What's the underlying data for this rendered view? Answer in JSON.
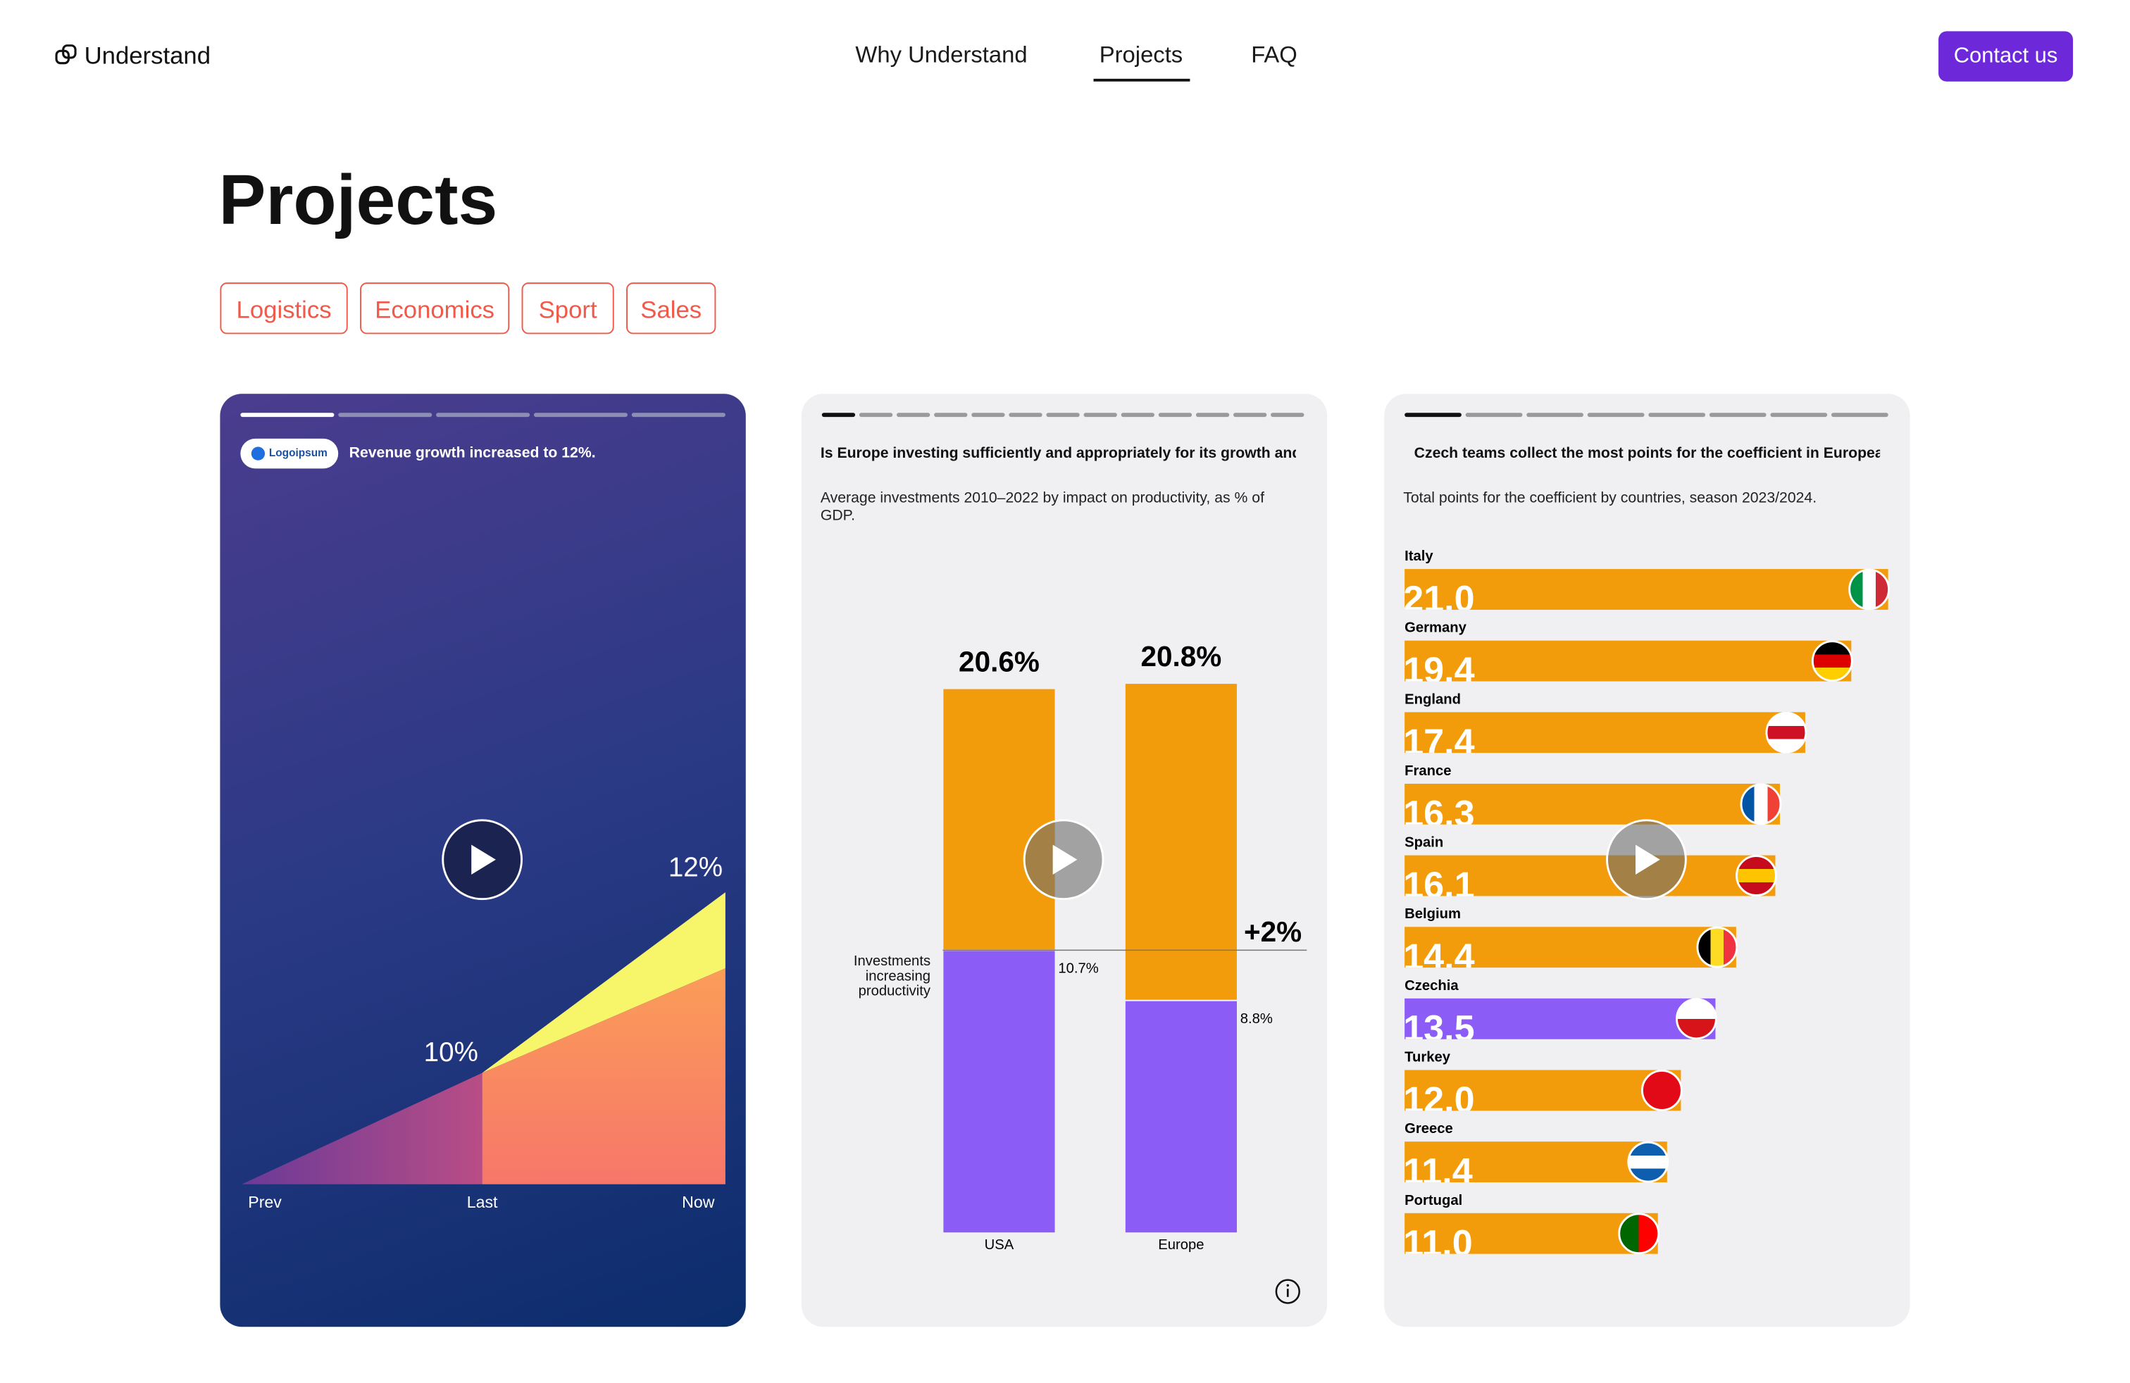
{
  "header": {
    "logo": "Understand",
    "nav": [
      "Why Understand",
      "Projects",
      "FAQ"
    ],
    "cta": "Contact us"
  },
  "page": {
    "title": "Projects",
    "filters": [
      "Logistics",
      "Economics",
      "Sport",
      "Sales"
    ]
  },
  "cards": [
    {
      "badge": "Logoipsum",
      "headline": "Revenue growth increased to 12%.",
      "annotations": [
        "10%",
        "12%"
      ],
      "categories": [
        "Prev",
        "Last",
        "Now"
      ]
    }
  ],
  "chart_data": [
    {
      "type": "stacked-bar",
      "title": "Is Europe investing sufficiently and appropriately for its growth and",
      "subtitle": "Average investments 2010–2022 by impact on productivity, as % of GDP.",
      "categories": [
        "USA",
        "Europe"
      ],
      "series": [
        {
          "name": "Investments increasing productivity",
          "color": "#8b5cf6",
          "values": [
            10.7,
            8.8
          ],
          "value_labels": [
            "10.7%",
            "8.8%"
          ]
        },
        {
          "color": "#f39c0b",
          "values": [
            9.9,
            12.0
          ]
        }
      ],
      "total_labels": [
        "20.6%",
        "20.8%"
      ],
      "annotation": "+2%"
    },
    {
      "type": "hbar",
      "title": "Czech teams collect the most points for the coefficient in Europea",
      "subtitle": "Total points for the coefficient by countries, season 2023/2024.",
      "categories": [
        "Italy",
        "Germany",
        "England",
        "France",
        "Spain",
        "Belgium",
        "Czechia",
        "Turkey",
        "Greece",
        "Portugal"
      ],
      "values": [
        21.0,
        19.4,
        17.4,
        16.3,
        16.1,
        14.4,
        13.5,
        12.0,
        11.4,
        11.0
      ],
      "value_labels": [
        "21.0",
        "19.4",
        "17.4",
        "16.3",
        "16.1",
        "14.4",
        "13.5",
        "12.0",
        "11.4",
        "11.0"
      ],
      "color": "#f39c0b",
      "highlight": "Czechia",
      "highlight_color": "#8b5cf6"
    }
  ]
}
